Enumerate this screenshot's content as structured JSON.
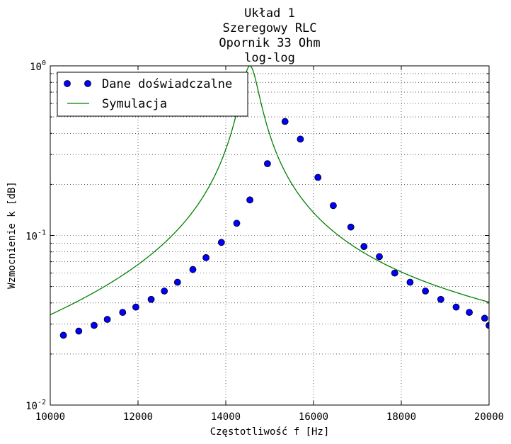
{
  "chart_data": {
    "type": "line",
    "title_lines": [
      "Układ 1",
      "Szeregowy RLC",
      "Opornik 33 Ohm",
      "log-log"
    ],
    "xlabel": "Częstotliwość f [Hz]",
    "ylabel": "Wzmocnienie k [dB]",
    "xlim": [
      10000,
      20000
    ],
    "ylim": [
      0.01,
      1
    ],
    "yscale": "log",
    "grid": true,
    "legend_position": "top-left",
    "x_ticks": [
      {
        "value": 10000,
        "label": "10000"
      },
      {
        "value": 12000,
        "label": "12000"
      },
      {
        "value": 14000,
        "label": "14000"
      },
      {
        "value": 16000,
        "label": "16000"
      },
      {
        "value": 18000,
        "label": "18000"
      },
      {
        "value": 20000,
        "label": "20000"
      }
    ],
    "y_ticks": [
      {
        "value": 0.01,
        "base": "10",
        "exp": "-2"
      },
      {
        "value": 0.1,
        "base": "10",
        "exp": "-1"
      },
      {
        "value": 1,
        "base": "10",
        "exp": "0"
      }
    ],
    "series": [
      {
        "name": "Dane doświadczalne",
        "kind": "markers",
        "color": "#0000ff",
        "edge_color": "#000000",
        "points": [
          [
            10300,
            0.0258
          ],
          [
            10650,
            0.0273
          ],
          [
            11000,
            0.0295
          ],
          [
            11300,
            0.032
          ],
          [
            11650,
            0.0352
          ],
          [
            11950,
            0.0378
          ],
          [
            12300,
            0.042
          ],
          [
            12600,
            0.047
          ],
          [
            12900,
            0.053
          ],
          [
            13250,
            0.063
          ],
          [
            13550,
            0.074
          ],
          [
            13900,
            0.091
          ],
          [
            14250,
            0.118
          ],
          [
            14550,
            0.162
          ],
          [
            14950,
            0.265
          ],
          [
            15350,
            0.47
          ],
          [
            15700,
            0.37
          ],
          [
            16100,
            0.22
          ],
          [
            16450,
            0.15
          ],
          [
            16850,
            0.112
          ],
          [
            17150,
            0.086
          ],
          [
            17500,
            0.075
          ],
          [
            17850,
            0.06
          ],
          [
            18200,
            0.053
          ],
          [
            18550,
            0.047
          ],
          [
            18900,
            0.042
          ],
          [
            19250,
            0.0378
          ],
          [
            19550,
            0.0352
          ],
          [
            19900,
            0.0325
          ],
          [
            20000,
            0.0295
          ]
        ]
      },
      {
        "name": "Symulacja",
        "kind": "line",
        "color": "#008000",
        "f0": 14550,
        "Q": 38.2
      }
    ]
  }
}
